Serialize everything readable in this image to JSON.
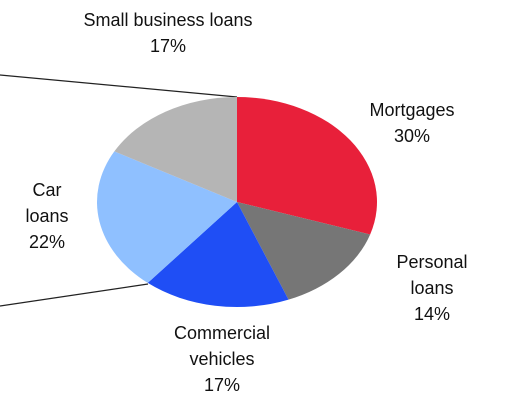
{
  "chart_data": {
    "type": "pie",
    "categories": [
      "Mortgages",
      "Personal loans",
      "Commercial vehicles",
      "Car loans",
      "Small business loans"
    ],
    "values": [
      30,
      14,
      17,
      22,
      17
    ],
    "value_labels": [
      "30%",
      "14%",
      "17%",
      "22%",
      "17%"
    ],
    "colors": [
      "#e8203a",
      "#767676",
      "#1f4ef5",
      "#8fc0ff",
      "#b5b5b5"
    ]
  }
}
